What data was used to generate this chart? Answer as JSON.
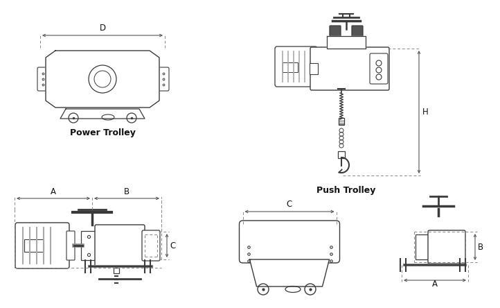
{
  "bg_color": "#ffffff",
  "lc": "#3a3a3a",
  "dc": "#555555",
  "tc": "#111111",
  "gray": "#888888",
  "dark_gray": "#666666",
  "labels": {
    "power_trolley": "Power Trolley",
    "push_trolley": "Push Trolley",
    "D": "D",
    "A": "A",
    "B": "B",
    "C": "C",
    "H": "H"
  },
  "figsize": [
    7.22,
    4.44
  ],
  "dpi": 100
}
